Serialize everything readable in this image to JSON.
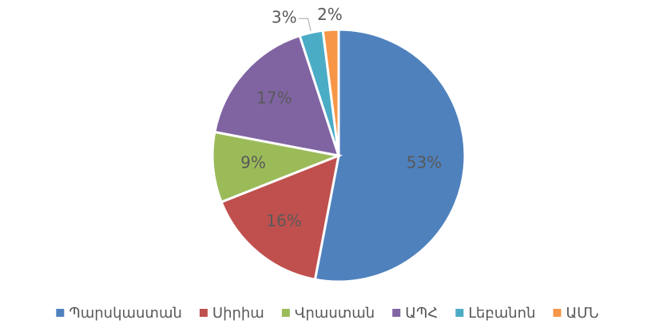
{
  "chart_data": {
    "type": "pie",
    "categories": [
      "Պարսկաստան",
      "Սիրիա",
      "Վրաստան",
      "ԱՊՀ",
      "Լեբանոն",
      "ԱՄՆ"
    ],
    "values": [
      53,
      16,
      9,
      17,
      3,
      2
    ],
    "value_labels": [
      "53%",
      "16%",
      "9%",
      "17%",
      "3%",
      "2%"
    ],
    "colors": [
      "#4f81bd",
      "#c0504d",
      "#9bbb59",
      "#8064a2",
      "#4bacc6",
      "#f79646"
    ],
    "legend": "bottom"
  }
}
